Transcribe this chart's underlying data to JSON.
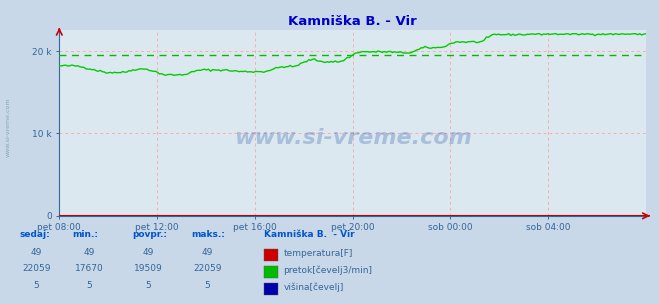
{
  "title": "Kamniška B. - Vir",
  "title_color": "#0000cc",
  "bg_color": "#c8d8e8",
  "plot_bg_color": "#dce8f0",
  "grid_color": "#ffaaaa",
  "avg_line_color": "#00bb00",
  "avg_value": 19509,
  "ymax": 22500,
  "yticks": [
    0,
    10000,
    20000
  ],
  "ytick_labels": [
    "0",
    "10 k",
    "20 k"
  ],
  "xtick_labels": [
    "pet 08:00",
    "pet 12:00",
    "pet 16:00",
    "pet 20:00",
    "sob 00:00",
    "sob 04:00"
  ],
  "xtick_positions": [
    0.0,
    0.1667,
    0.3333,
    0.5,
    0.6667,
    0.8333
  ],
  "line_color_pretok": "#00cc00",
  "line_color_temp": "#cc0000",
  "line_color_visina": "#0000aa",
  "watermark": "www.si-vreme.com",
  "watermark_color": "#2255aa",
  "legend_title": "Kamniška B.  - Vir",
  "legend_items": [
    {
      "label": "temperatura[F]",
      "color": "#cc0000"
    },
    {
      "label": "pretok[čevelj3/min]",
      "color": "#00bb00"
    },
    {
      "label": "višina[čevelj]",
      "color": "#0000aa"
    }
  ],
  "table_headers": [
    "sedaj:",
    "min.:",
    "povpr.:",
    "maks.:"
  ],
  "table_rows": [
    [
      49,
      49,
      49,
      49
    ],
    [
      22059,
      17670,
      19509,
      22059
    ],
    [
      5,
      5,
      5,
      5
    ]
  ],
  "sidebar_text": "www.si-vreme.com"
}
